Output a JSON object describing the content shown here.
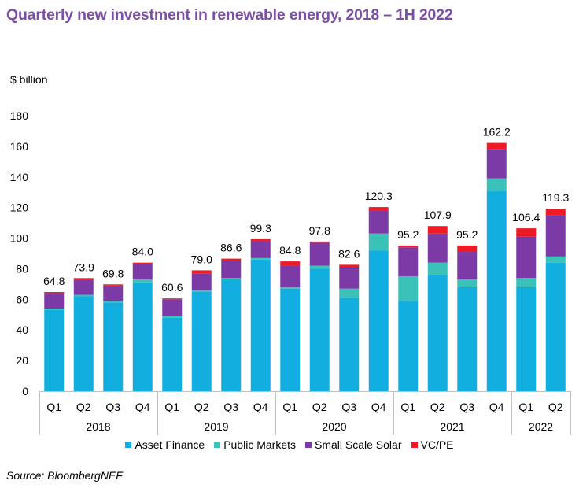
{
  "title": "Quarterly new investment in renewable energy, 2018 – 1H 2022",
  "source": "Source: BloombergNEF",
  "chart_data": {
    "type": "bar",
    "stacked": true,
    "ylabel": "$ billion",
    "ylim": [
      0,
      180
    ],
    "yticks": [
      0,
      20,
      40,
      60,
      80,
      100,
      120,
      140,
      160,
      180
    ],
    "grid": false,
    "legend_position": "bottom",
    "categories": [
      "Q1",
      "Q2",
      "Q3",
      "Q4",
      "Q1",
      "Q2",
      "Q3",
      "Q4",
      "Q1",
      "Q2",
      "Q3",
      "Q4",
      "Q1",
      "Q2",
      "Q3",
      "Q4",
      "Q1",
      "Q2"
    ],
    "years": [
      {
        "label": "2018",
        "count": 4
      },
      {
        "label": "2019",
        "count": 4
      },
      {
        "label": "2020",
        "count": 4
      },
      {
        "label": "2021",
        "count": 4
      },
      {
        "label": "2022",
        "count": 2
      }
    ],
    "totals": [
      "64.8",
      "73.9",
      "69.8",
      "84.0",
      "60.6",
      "79.0",
      "86.6",
      "99.3",
      "84.8",
      "97.8",
      "82.6",
      "120.3",
      "95.2",
      "107.9",
      "95.2",
      "162.2",
      "106.4",
      "119.3"
    ],
    "series": [
      {
        "name": "Asset Finance",
        "color": "#13aee0",
        "values": [
          53,
          62,
          58,
          71,
          48,
          65,
          73,
          86,
          67,
          80,
          61,
          92,
          59,
          76,
          68,
          131,
          68,
          84
        ]
      },
      {
        "name": "Public Markets",
        "color": "#3bc2b8",
        "values": [
          1,
          1,
          1,
          2,
          1,
          1,
          1,
          1,
          1,
          2,
          6,
          11,
          16,
          8,
          5,
          8,
          6,
          4
        ]
      },
      {
        "name": "Small Scale Solar",
        "color": "#7b3aa6",
        "values": [
          10,
          10,
          10,
          10,
          11,
          11,
          11,
          11,
          14,
          15,
          14,
          15,
          19,
          19,
          18,
          19,
          27,
          27
        ]
      },
      {
        "name": "VC/PE",
        "color": "#ee1b24",
        "values": [
          0.8,
          0.9,
          0.8,
          1.0,
          0.6,
          2.0,
          1.6,
          1.3,
          2.8,
          0.8,
          1.6,
          2.3,
          1.2,
          4.9,
          4.2,
          4.2,
          5.4,
          4.3
        ]
      }
    ]
  }
}
